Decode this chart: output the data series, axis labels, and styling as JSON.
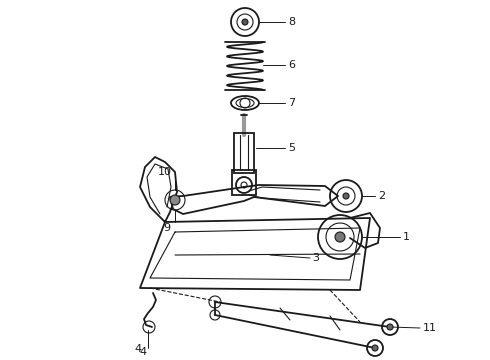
{
  "background_color": "#ffffff",
  "line_color": "#1a1a1a",
  "figsize": [
    4.9,
    3.6
  ],
  "dpi": 100,
  "label_fontsize": 8,
  "lw_main": 1.3,
  "lw_thin": 0.8,
  "lw_med": 1.0
}
